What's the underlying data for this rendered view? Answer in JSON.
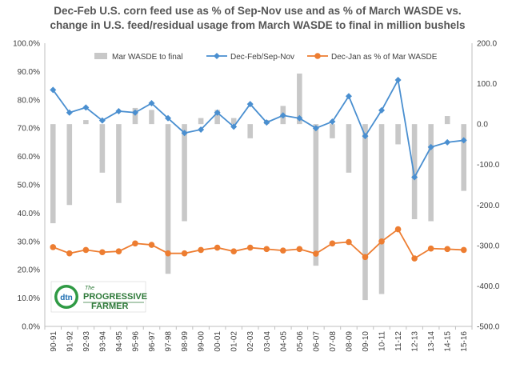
{
  "chart_data": {
    "type": "bar+line",
    "title_line1": "Dec-Feb U.S. corn feed use as % of Sep-Nov use and as % of March WASDE vs.",
    "title_line2": "change in U.S. feed/residual usage from March WASDE to final in million bushels",
    "categories": [
      "90-91",
      "91-92",
      "92-93",
      "93-94",
      "94-95",
      "95-96",
      "96-97",
      "97-98",
      "98-99",
      "99-00",
      "00-01",
      "01-02",
      "02-03",
      "03-04",
      "04-05",
      "05-06",
      "06-07",
      "07-08",
      "08-09",
      "09-10",
      "10-11",
      "11-12",
      "12-13",
      "13-14",
      "14-15",
      "15-16"
    ],
    "left_axis": {
      "min": 0,
      "max": 100,
      "step": 10,
      "tick_labels": [
        "0.0%",
        "10.0%",
        "20.0%",
        "30.0%",
        "40.0%",
        "50.0%",
        "60.0%",
        "70.0%",
        "80.0%",
        "90.0%",
        "100.0%"
      ]
    },
    "right_axis": {
      "min": -500,
      "max": 200,
      "step": 100,
      "tick_labels": [
        "-500.0",
        "-400.0",
        "-300.0",
        "-200.0",
        "-100.0",
        "0.0",
        "100.0",
        "200.0"
      ]
    },
    "series": [
      {
        "name": "Mar WASDE to final",
        "kind": "bar",
        "axis": "right",
        "color": "#c8c8c8",
        "values": [
          -245,
          -200,
          10,
          -120,
          -195,
          40,
          35,
          -370,
          -240,
          15,
          35,
          15,
          -35,
          10,
          45,
          125,
          -350,
          -35,
          -120,
          -435,
          -420,
          -50,
          -235,
          -240,
          20,
          -165
        ]
      },
      {
        "name": "Dec-Feb/Sep-Nov",
        "kind": "line",
        "axis": "left",
        "color": "#4a8fd0",
        "values": [
          83.5,
          75.5,
          77.3,
          72.7,
          76.0,
          75.5,
          78.8,
          73.5,
          68.3,
          69.5,
          75.5,
          70.5,
          78.5,
          72.0,
          74.5,
          73.5,
          70.0,
          72.3,
          81.3,
          67.2,
          76.3,
          87.0,
          52.7,
          63.3,
          65.0,
          65.7
        ]
      },
      {
        "name": "Dec-Jan as % of Mar WASDE",
        "kind": "line",
        "axis": "left",
        "color": "#ed7d31",
        "values": [
          28.0,
          25.8,
          27.0,
          26.2,
          26.5,
          29.3,
          28.8,
          25.8,
          25.8,
          27.0,
          27.8,
          26.5,
          27.8,
          27.3,
          26.8,
          27.3,
          25.7,
          29.3,
          29.8,
          24.5,
          30.0,
          34.3,
          24.0,
          27.5,
          27.3,
          27.0
        ]
      }
    ],
    "legend_position": "top",
    "grid": false
  },
  "logo": {
    "mark": "dtn",
    "line1": "The",
    "line2": "PROGRESSIVE",
    "line3": "FARMER"
  }
}
